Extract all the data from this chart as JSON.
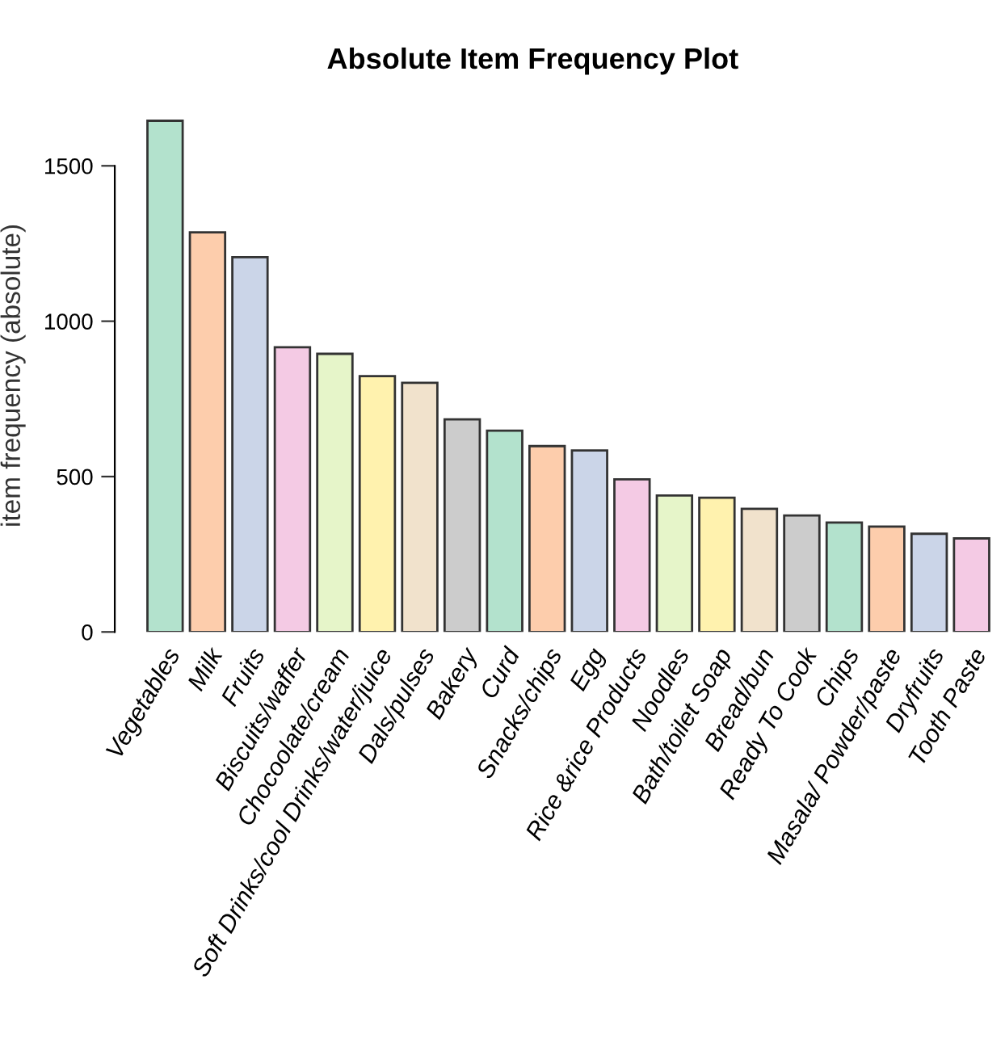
{
  "chart_data": {
    "type": "bar",
    "title": "Absolute Item Frequency Plot",
    "ylabel": "item frequency (absolute)",
    "categories": [
      "Vegetables",
      "Milk",
      "Fruits",
      "Biscuits/waffer",
      "Chocoolate/cream",
      "Soft Drinks/cool Drinks/water/juice",
      "Dals/pulses",
      "Bakery",
      "Curd",
      "Snacks/chips",
      "Egg",
      "Rice &rice Products",
      "Noodles",
      "Bath/toilet Soap",
      "Bread/bun",
      "Ready To Cook",
      "Chips",
      "Masala/ Powder/paste",
      "Dryfruits",
      "Tooth Paste"
    ],
    "values": [
      1645,
      1286,
      1206,
      916,
      895,
      823,
      802,
      684,
      648,
      598,
      584,
      491,
      439,
      432,
      396,
      375,
      352,
      339,
      316,
      301
    ],
    "colors": [
      "#b3e2cd",
      "#fdcdac",
      "#cbd5e8",
      "#f4cae4",
      "#e6f5c9",
      "#fff2ae",
      "#f1e2cc",
      "#cccccc",
      "#b3e2cd",
      "#fdcdac",
      "#cbd5e8",
      "#f4cae4",
      "#e6f5c9",
      "#fff2ae",
      "#f1e2cc",
      "#cccccc",
      "#b3e2cd",
      "#fdcdac",
      "#cbd5e8",
      "#f4cae4"
    ],
    "ylim": [
      0,
      1650
    ],
    "yticks": [
      0,
      500,
      1000,
      1500
    ],
    "grid": false,
    "legend": false
  }
}
